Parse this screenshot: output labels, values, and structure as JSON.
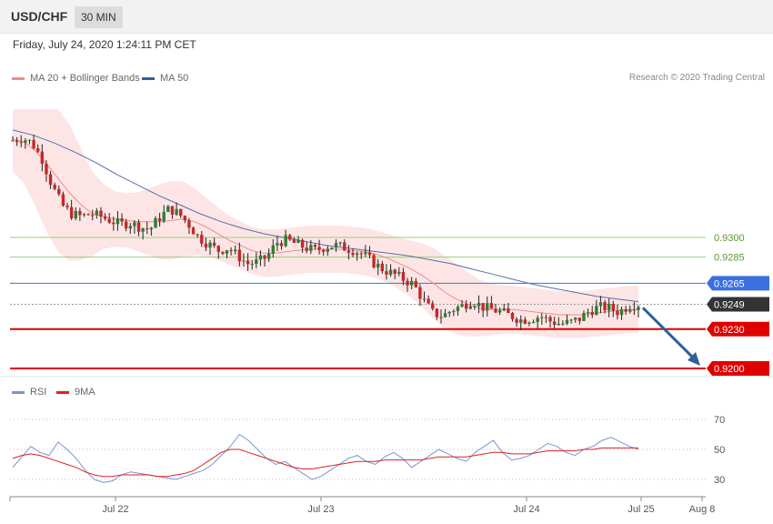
{
  "header": {
    "symbol": "USD/CHF",
    "timeframe": "30 MIN"
  },
  "datetime": "Friday, July 24, 2020 1:24:11 PM CET",
  "legend": {
    "ma20": "MA 20 + Bollinger Bands",
    "ma50": "MA 50",
    "rsi": "RSI",
    "ma9": "9MA"
  },
  "credit": "Research © 2020 Trading Central",
  "colors": {
    "up": "#2e7d32",
    "down": "#c62828",
    "band": "#fcdcdc",
    "ma20": "#f08a8a",
    "ma50": "#5b6fa8",
    "support": "#e00000",
    "resistance_green": "#9acd7a",
    "pivot_blue": "#3b6fe0",
    "current": "#333333",
    "rsi": "#7b93d6",
    "ma9": "#e02020",
    "arrow": "#2f5f9c"
  },
  "chart_data": [
    {
      "type": "candlestick",
      "title": "USD/CHF 30 MIN",
      "x_ticks": [
        "Jul 22",
        "Jul 23",
        "Jul 24",
        "Jul 25",
        "Aug 8"
      ],
      "ylim": [
        0.9195,
        0.933
      ],
      "levels": [
        {
          "label": "0.9300",
          "value": 0.93,
          "kind": "resistance"
        },
        {
          "label": "0.9285",
          "value": 0.9285,
          "kind": "resistance"
        },
        {
          "label": "0.9265",
          "value": 0.9265,
          "kind": "pivot"
        },
        {
          "label": "0.9249",
          "value": 0.9249,
          "kind": "current"
        },
        {
          "label": "0.9230",
          "value": 0.923,
          "kind": "support"
        },
        {
          "label": "0.9200",
          "value": 0.92,
          "kind": "support"
        }
      ],
      "close_path": [
        0.9374,
        0.9376,
        0.9372,
        0.936,
        0.934,
        0.9325,
        0.9318,
        0.9316,
        0.9318,
        0.9316,
        0.9313,
        0.931,
        0.9311,
        0.9308,
        0.9306,
        0.9315,
        0.9322,
        0.9318,
        0.931,
        0.93,
        0.9295,
        0.929,
        0.9292,
        0.9286,
        0.928,
        0.9281,
        0.9285,
        0.9296,
        0.9298,
        0.9295,
        0.9292,
        0.929,
        0.9293,
        0.9294,
        0.9292,
        0.929,
        0.9286,
        0.928,
        0.9275,
        0.9272,
        0.9268,
        0.9264,
        0.9252,
        0.9242,
        0.924,
        0.9245,
        0.9248,
        0.9252,
        0.9247,
        0.9245,
        0.9243,
        0.924,
        0.9237,
        0.9238,
        0.924,
        0.9236,
        0.9234,
        0.9235,
        0.9238,
        0.9244,
        0.9247,
        0.9246,
        0.9243,
        0.9248,
        0.9249
      ],
      "ma20": [
        0.9375,
        0.9373,
        0.9366,
        0.9356,
        0.9345,
        0.9334,
        0.9325,
        0.9318,
        0.9316,
        0.9314,
        0.9313,
        0.9312,
        0.9312,
        0.9312,
        0.9313,
        0.9314,
        0.9312,
        0.9308,
        0.9303,
        0.9298,
        0.9294,
        0.929,
        0.9288,
        0.9288,
        0.9289,
        0.929,
        0.9291,
        0.9291,
        0.9291,
        0.9291,
        0.929,
        0.9289,
        0.9287,
        0.9284,
        0.928,
        0.9276,
        0.9271,
        0.9265,
        0.9258,
        0.9253,
        0.9249,
        0.9246,
        0.9245,
        0.9245,
        0.9245,
        0.9244,
        0.9243,
        0.9242,
        0.9241,
        0.9241,
        0.9241,
        0.9242,
        0.9243,
        0.9244,
        0.9245,
        0.9245
      ],
      "ma50": [
        0.9382,
        0.9378,
        0.9372,
        0.9365,
        0.9357,
        0.9348,
        0.934,
        0.9332,
        0.9325,
        0.9318,
        0.9312,
        0.9307,
        0.9303,
        0.93,
        0.9297,
        0.9294,
        0.9292,
        0.929,
        0.9288,
        0.9286,
        0.9283,
        0.928,
        0.9276,
        0.9272,
        0.9268,
        0.9264,
        0.9261,
        0.9258,
        0.9255,
        0.9253,
        0.9251
      ],
      "forecast": {
        "from": 0.9249,
        "to": 0.92
      }
    },
    {
      "type": "line",
      "title": "RSI",
      "y_ticks": [
        70,
        50,
        30
      ],
      "ylim": [
        20,
        80
      ],
      "series": [
        {
          "name": "RSI",
          "values": [
            38,
            45,
            52,
            48,
            46,
            55,
            50,
            44,
            36,
            30,
            28,
            29,
            33,
            35,
            34,
            33,
            32,
            31,
            30,
            32,
            34,
            36,
            40,
            46,
            52,
            60,
            56,
            50,
            44,
            40,
            42,
            38,
            34,
            30,
            32,
            36,
            40,
            44,
            46,
            42,
            40,
            45,
            48,
            44,
            38,
            42,
            46,
            50,
            47,
            44,
            42,
            48,
            52,
            56,
            48,
            43,
            44,
            46,
            50,
            54,
            52,
            48,
            46,
            50,
            52,
            56,
            58,
            55,
            52,
            50
          ]
        },
        {
          "name": "9MA",
          "values": [
            44,
            46,
            47,
            46,
            44,
            42,
            40,
            38,
            35,
            33,
            32,
            32,
            33,
            33,
            33,
            33,
            32,
            32,
            33,
            34,
            36,
            40,
            44,
            48,
            50,
            50,
            48,
            46,
            44,
            42,
            40,
            38,
            37,
            37,
            38,
            39,
            40,
            41,
            42,
            42,
            42,
            43,
            43,
            43,
            43,
            43,
            44,
            45,
            45,
            45,
            45,
            46,
            47,
            48,
            48,
            47,
            47,
            47,
            48,
            49,
            49,
            49,
            49,
            50,
            50,
            51,
            51,
            51,
            51,
            51
          ]
        }
      ]
    }
  ]
}
